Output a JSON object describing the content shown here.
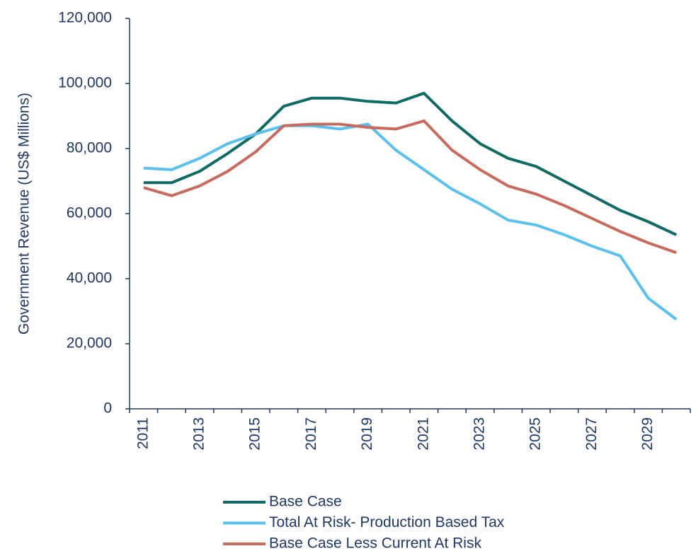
{
  "chart_data": {
    "type": "line",
    "y_label": "Government Revenue (US$ Millions)",
    "categories": [
      "2011",
      null,
      "2013",
      null,
      "2015",
      null,
      "2017",
      null,
      "2019",
      null,
      "2021",
      null,
      "2023",
      null,
      "2025",
      null,
      "2027",
      null,
      "2029",
      null
    ],
    "series": [
      {
        "name": "Base Case",
        "color": "#0f6b63",
        "values": [
          69500,
          69500,
          73000,
          78500,
          84500,
          93000,
          95500,
          95500,
          94500,
          94000,
          97000,
          88500,
          81500,
          77000,
          74500,
          70000,
          65500,
          61000,
          57500,
          53500
        ]
      },
      {
        "name": "Total At Risk- Production Based Tax",
        "color": "#5bc0eb",
        "values": [
          74000,
          73500,
          77000,
          81500,
          84500,
          87000,
          87000,
          86000,
          87500,
          79500,
          73500,
          67500,
          63000,
          58000,
          56500,
          53500,
          50000,
          47000,
          34000,
          27500
        ]
      },
      {
        "name": "Base Case Less Current At Risk",
        "color": "#c96a5e",
        "values": [
          68000,
          65500,
          68500,
          73000,
          79000,
          87000,
          87500,
          87500,
          86500,
          86000,
          88500,
          79500,
          73500,
          68500,
          66000,
          62500,
          58500,
          54500,
          51000,
          48000
        ]
      }
    ],
    "ylim": [
      0,
      120000
    ],
    "yticks": [
      0,
      {
        "value": 20000,
        "label": "20,000"
      },
      {
        "value": 40000,
        "label": "40,000"
      },
      {
        "value": 60000,
        "label": "60,000"
      },
      {
        "value": 80000,
        "label": "80,000"
      },
      {
        "value": 100000,
        "label": "100,000"
      },
      {
        "value": 120000,
        "label": "120,000"
      }
    ],
    "grid": false,
    "legend": "bottom"
  }
}
